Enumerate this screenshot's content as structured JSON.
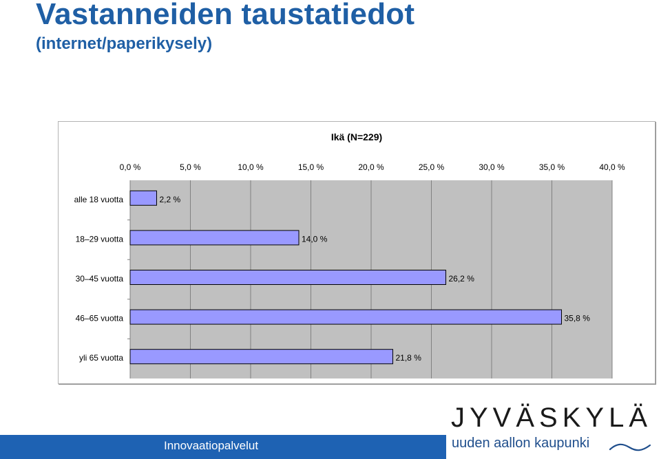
{
  "title": "Vastanneiden taustatiedot",
  "subtitle": "(internet/paperikysely)",
  "chart_data": {
    "type": "bar",
    "orientation": "horizontal",
    "title": "Ikä (N=229)",
    "categories": [
      "alle 18 vuotta",
      "18–29 vuotta",
      "30–45 vuotta",
      "46–65 vuotta",
      "yli 65 vuotta"
    ],
    "values": [
      2.2,
      14.0,
      26.2,
      35.8,
      21.8
    ],
    "value_labels": [
      "2,2 %",
      "14,0 %",
      "26,2 %",
      "35,8 %",
      "21,8 %"
    ],
    "xlim": [
      0,
      40
    ],
    "ticks": [
      0,
      5,
      10,
      15,
      20,
      25,
      30,
      35,
      40
    ],
    "tick_labels": [
      "0,0 %",
      "5,0 %",
      "10,0 %",
      "15,0 %",
      "20,0 %",
      "25,0 %",
      "30,0 %",
      "35,0 %",
      "40,0 %"
    ],
    "axis_position": "top",
    "grid": true,
    "colors": {
      "bar_fill": "#9999ff",
      "plot_background": "#c0c0c0",
      "gridline": "#808080"
    }
  },
  "footer": {
    "department": "Innovaatiopalvelut",
    "brand": "JYVÄSKYLÄ",
    "tagline": "uuden aallon kaupunki",
    "bar_color": "#1e62b3"
  }
}
